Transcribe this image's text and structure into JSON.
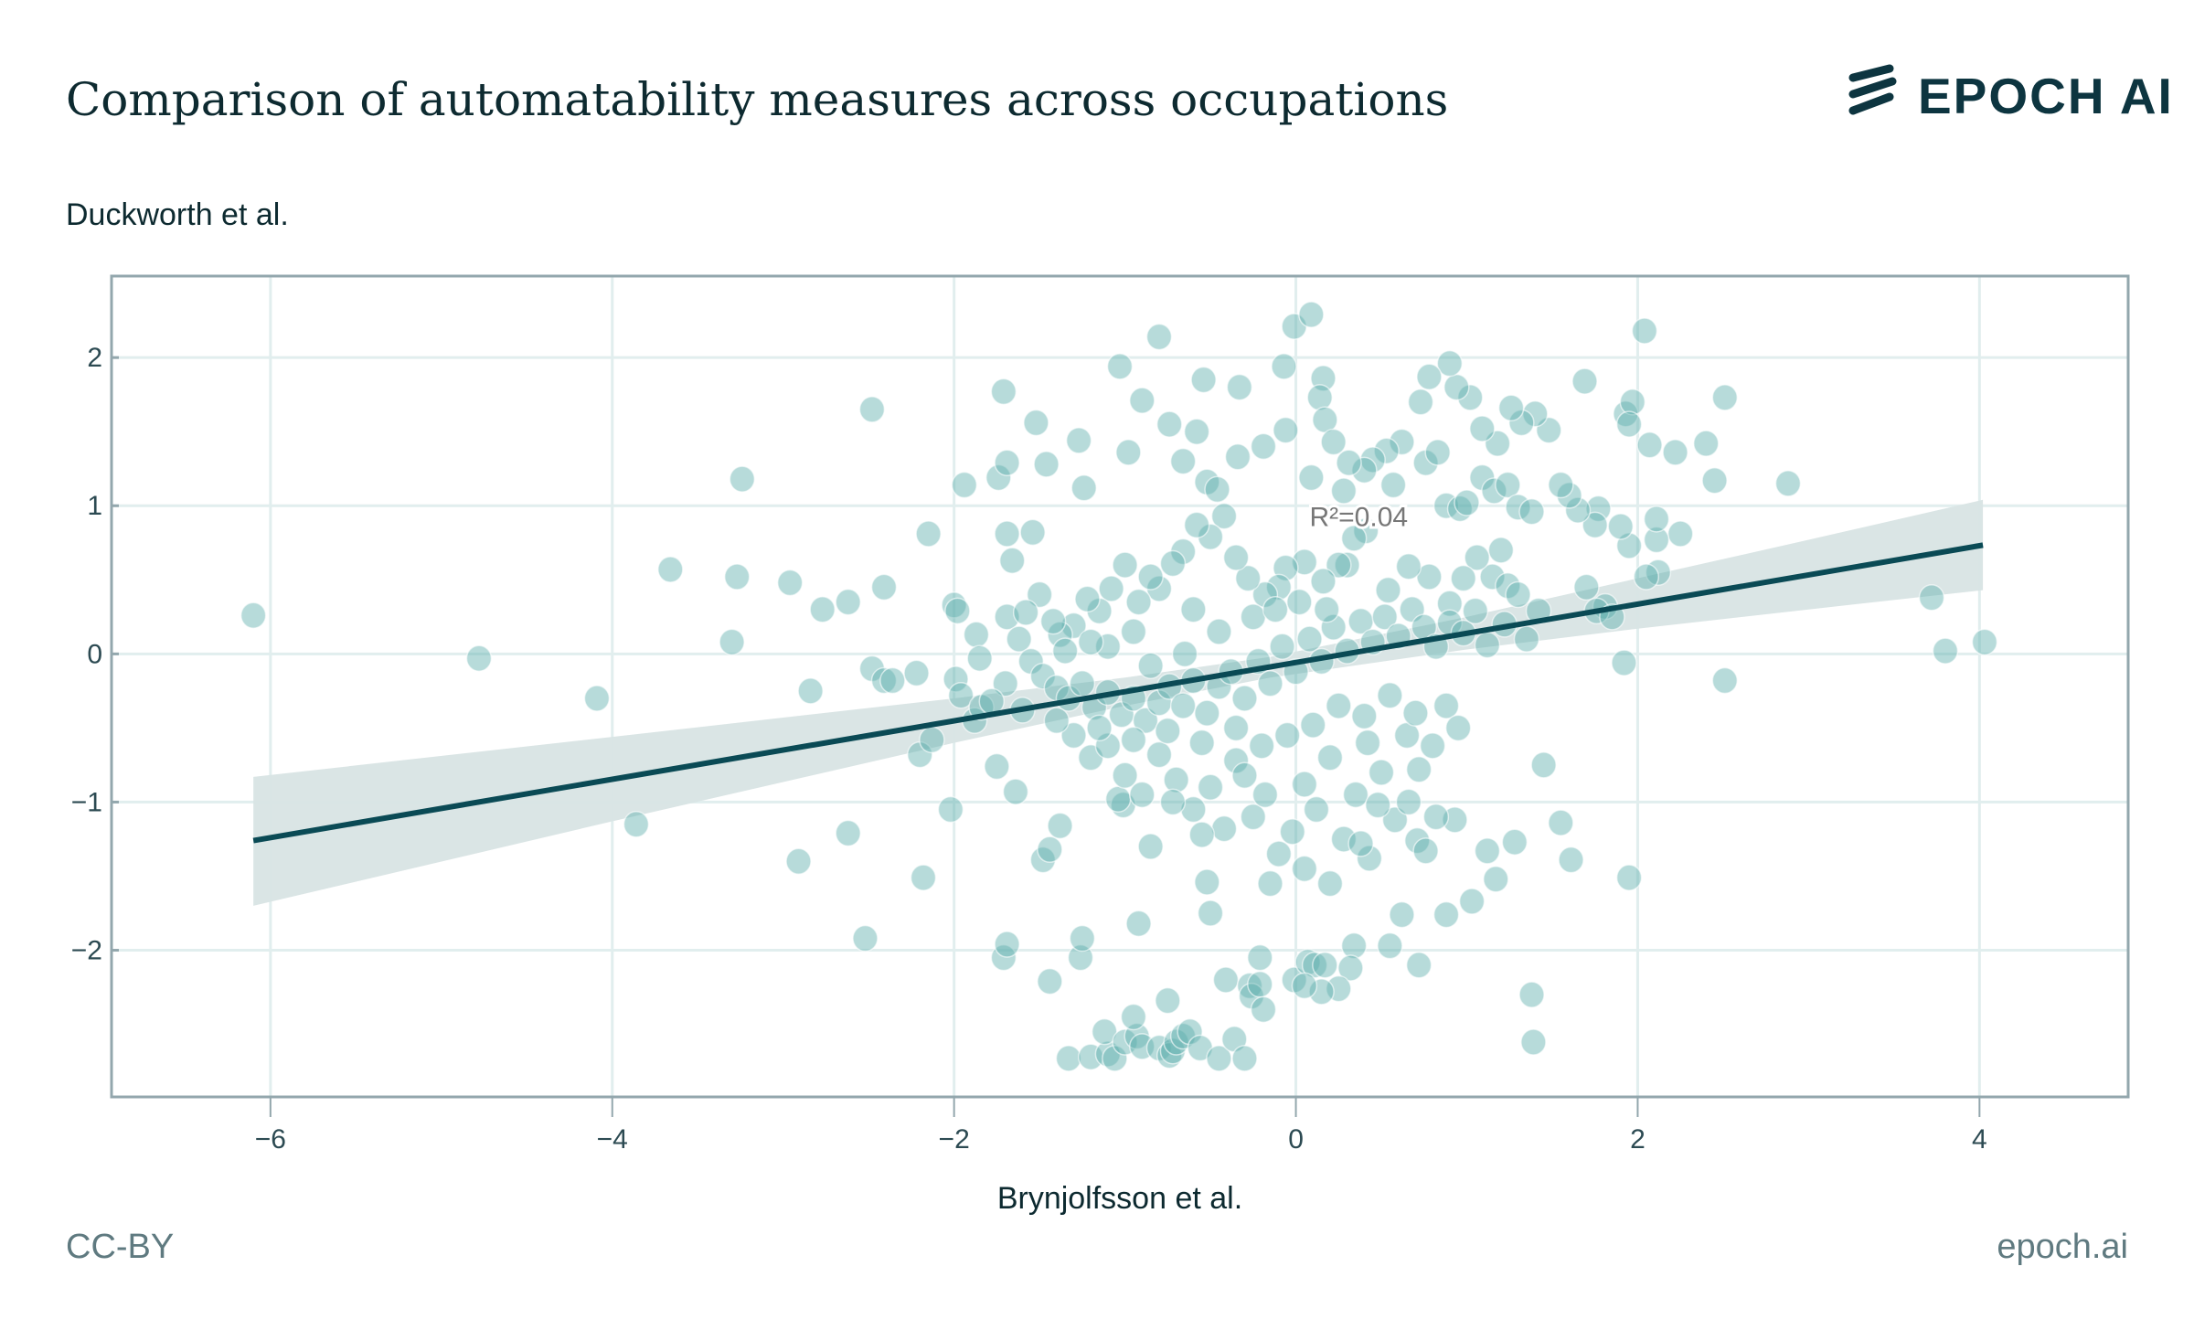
{
  "header": {
    "title": "Comparison of automatability measures across occupations",
    "logo_text": "EPOCH AI"
  },
  "footer": {
    "license": "CC-BY",
    "site": "epoch.ai"
  },
  "colors": {
    "point": "#5fb0ae",
    "line": "#0a4a55",
    "band": "#d8e4e4",
    "grid": "#e1eeee",
    "frame": "#93a7ad"
  },
  "chart_data": {
    "type": "scatter",
    "title": "Comparison of automatability measures across occupations",
    "xlabel": "Brynjolfsson et al.",
    "ylabel": "Duckworth et al.",
    "xlim": [
      -6.93,
      4.87
    ],
    "ylim": [
      -2.99,
      2.55
    ],
    "xticks": [
      -6,
      -4,
      -2,
      0,
      2,
      4
    ],
    "xtick_labels": [
      "−6",
      "−4",
      "−2",
      "0",
      "2",
      "4"
    ],
    "yticks": [
      -2,
      -1,
      0,
      1,
      2
    ],
    "ytick_labels": [
      "−2",
      "−1",
      "0",
      "1",
      "2"
    ],
    "grid": true,
    "annotation": {
      "text": "R²=0.04",
      "x": 0.08,
      "y": 0.93
    },
    "regression": {
      "slope": 0.197,
      "intercept": -0.058,
      "x_range": [
        -6.1,
        4.02
      ],
      "ci_band": [
        {
          "x": -6.1,
          "lo": -1.7,
          "hi": -0.83
        },
        {
          "x": -4,
          "lo": -1.13,
          "hi": -0.56
        },
        {
          "x": -2,
          "lo": -0.6,
          "hi": -0.3
        },
        {
          "x": -1,
          "lo": -0.35,
          "hi": -0.16
        },
        {
          "x": -0.15,
          "lo": -0.16,
          "hi": -0.02
        },
        {
          "x": 1,
          "lo": 0.03,
          "hi": 0.25
        },
        {
          "x": 2,
          "lo": 0.17,
          "hi": 0.51
        },
        {
          "x": 3,
          "lo": 0.3,
          "hi": 0.77
        },
        {
          "x": 4.02,
          "lo": 0.43,
          "hi": 1.04
        }
      ]
    },
    "points": [
      [
        -6.1,
        0.26
      ],
      [
        -4.78,
        -0.03
      ],
      [
        -4.09,
        -0.3
      ],
      [
        -3.86,
        -1.15
      ],
      [
        -3.66,
        0.57
      ],
      [
        -3.3,
        0.08
      ],
      [
        -3.27,
        0.52
      ],
      [
        -3.24,
        1.18
      ],
      [
        -2.96,
        0.48
      ],
      [
        -2.91,
        -1.4
      ],
      [
        -2.84,
        -0.25
      ],
      [
        -2.77,
        0.3
      ],
      [
        -2.62,
        -1.21
      ],
      [
        -2.62,
        0.35
      ],
      [
        -2.52,
        -1.92
      ],
      [
        -2.48,
        1.65
      ],
      [
        -2.48,
        -0.1
      ],
      [
        -2.41,
        -0.18
      ],
      [
        -2.36,
        -0.18
      ],
      [
        -2.41,
        0.45
      ],
      [
        -2.22,
        -0.13
      ],
      [
        -2.18,
        -1.51
      ],
      [
        -2.2,
        -0.68
      ],
      [
        -2.15,
        0.81
      ],
      [
        -2.13,
        -0.58
      ],
      [
        -2.02,
        -1.05
      ],
      [
        -2.0,
        0.33
      ],
      [
        -1.98,
        0.29
      ],
      [
        -1.99,
        -0.17
      ],
      [
        -1.96,
        -0.28
      ],
      [
        -1.94,
        1.14
      ],
      [
        -1.87,
        0.13
      ],
      [
        -1.85,
        -0.03
      ],
      [
        -1.88,
        -0.45
      ],
      [
        -1.84,
        -0.36
      ],
      [
        -1.75,
        -0.76
      ],
      [
        -1.74,
        1.19
      ],
      [
        -1.71,
        1.77
      ],
      [
        -1.69,
        0.25
      ],
      [
        -1.71,
        -2.05
      ],
      [
        -1.69,
        -1.96
      ],
      [
        -1.69,
        1.29
      ],
      [
        -1.69,
        0.81
      ],
      [
        -1.66,
        0.63
      ],
      [
        -1.64,
        -0.93
      ],
      [
        -1.52,
        1.56
      ],
      [
        -1.54,
        0.82
      ],
      [
        -1.48,
        -1.39
      ],
      [
        -1.44,
        -1.32
      ],
      [
        -1.44,
        -2.21
      ],
      [
        -1.46,
        1.28
      ],
      [
        -1.38,
        -1.16
      ],
      [
        -1.27,
        1.44
      ],
      [
        -1.26,
        -2.05
      ],
      [
        -1.25,
        -1.92
      ],
      [
        -1.24,
        1.12
      ],
      [
        -1.33,
        -2.73
      ],
      [
        -1.2,
        -2.72
      ],
      [
        -1.1,
        -2.7
      ],
      [
        -1.06,
        -2.73
      ],
      [
        -1.12,
        -2.55
      ],
      [
        -1.0,
        -2.62
      ],
      [
        -0.93,
        -2.58
      ],
      [
        -0.9,
        -2.65
      ],
      [
        -0.8,
        -2.66
      ],
      [
        -0.74,
        -2.71
      ],
      [
        -0.72,
        -2.68
      ],
      [
        -0.7,
        -2.62
      ],
      [
        -0.66,
        -2.58
      ],
      [
        -0.62,
        -2.55
      ],
      [
        -0.56,
        -2.66
      ],
      [
        -0.45,
        -2.73
      ],
      [
        -0.36,
        -2.6
      ],
      [
        -0.3,
        -2.73
      ],
      [
        -0.75,
        -2.34
      ],
      [
        -0.95,
        -2.45
      ],
      [
        -1.03,
        1.94
      ],
      [
        -1.01,
        -1.02
      ],
      [
        -1.04,
        -0.98
      ],
      [
        -0.98,
        1.36
      ],
      [
        -0.92,
        -1.82
      ],
      [
        -0.9,
        1.71
      ],
      [
        -0.8,
        2.14
      ],
      [
        -0.74,
        1.55
      ],
      [
        -0.66,
        1.3
      ],
      [
        -0.58,
        1.5
      ],
      [
        -0.54,
        1.85
      ],
      [
        -0.5,
        -1.75
      ],
      [
        -0.52,
        -1.54
      ],
      [
        -0.52,
        1.16
      ],
      [
        -0.46,
        1.11
      ],
      [
        -0.41,
        -2.2
      ],
      [
        -0.34,
        1.33
      ],
      [
        -0.33,
        1.8
      ],
      [
        -0.27,
        -2.24
      ],
      [
        -0.26,
        -2.31
      ],
      [
        -0.21,
        -2.05
      ],
      [
        -0.21,
        -2.23
      ],
      [
        -0.19,
        -2.4
      ],
      [
        -0.19,
        1.4
      ],
      [
        -0.07,
        1.94
      ],
      [
        -0.01,
        2.21
      ],
      [
        0.09,
        2.29
      ],
      [
        -0.06,
        1.51
      ],
      [
        0.09,
        1.19
      ],
      [
        0.16,
        1.86
      ],
      [
        0.14,
        1.73
      ],
      [
        0.17,
        1.58
      ],
      [
        -0.01,
        -2.2
      ],
      [
        0.07,
        -2.08
      ],
      [
        0.11,
        -2.1
      ],
      [
        0.17,
        -2.1
      ],
      [
        0.34,
        -1.97
      ],
      [
        0.32,
        -2.12
      ],
      [
        0.25,
        -2.26
      ],
      [
        0.15,
        -2.28
      ],
      [
        0.05,
        -2.24
      ],
      [
        0.43,
        -1.38
      ],
      [
        0.55,
        -1.97
      ],
      [
        0.62,
        -1.76
      ],
      [
        0.72,
        -2.1
      ],
      [
        0.88,
        -1.76
      ],
      [
        0.71,
        -1.26
      ],
      [
        0.76,
        -1.33
      ],
      [
        0.93,
        -1.12
      ],
      [
        0.82,
        -1.1
      ],
      [
        1.03,
        -1.67
      ],
      [
        1.12,
        -1.33
      ],
      [
        1.17,
        -1.52
      ],
      [
        1.28,
        -1.27
      ],
      [
        1.38,
        -2.3
      ],
      [
        1.39,
        -2.62
      ],
      [
        1.45,
        -0.75
      ],
      [
        1.55,
        -1.14
      ],
      [
        1.61,
        -1.39
      ],
      [
        1.92,
        -0.06
      ],
      [
        1.95,
        -1.51
      ],
      [
        2.04,
        2.18
      ],
      [
        2.51,
        1.73
      ],
      [
        2.88,
        1.15
      ],
      [
        3.72,
        0.38
      ],
      [
        3.8,
        0.02
      ],
      [
        4.03,
        0.08
      ],
      [
        2.51,
        -0.18
      ],
      [
        1.69,
        1.84
      ],
      [
        1.93,
        1.62
      ],
      [
        1.97,
        1.7
      ],
      [
        1.95,
        1.55
      ],
      [
        2.07,
        1.41
      ],
      [
        2.22,
        1.36
      ],
      [
        2.4,
        1.42
      ],
      [
        2.45,
        1.17
      ],
      [
        2.25,
        0.81
      ],
      [
        2.11,
        0.77
      ],
      [
        2.11,
        0.91
      ],
      [
        2.12,
        0.55
      ],
      [
        2.05,
        0.52
      ],
      [
        1.95,
        0.73
      ],
      [
        1.9,
        0.86
      ],
      [
        1.77,
        0.98
      ],
      [
        1.75,
        0.87
      ],
      [
        1.7,
        0.45
      ],
      [
        1.81,
        0.32
      ],
      [
        1.76,
        0.29
      ],
      [
        1.85,
        0.25
      ],
      [
        1.65,
        0.97
      ],
      [
        1.6,
        1.07
      ],
      [
        1.55,
        1.14
      ],
      [
        1.48,
        1.51
      ],
      [
        1.4,
        1.62
      ],
      [
        1.32,
        1.56
      ],
      [
        1.26,
        1.66
      ],
      [
        1.18,
        1.42
      ],
      [
        1.09,
        1.52
      ],
      [
        1.02,
        1.73
      ],
      [
        0.94,
        1.8
      ],
      [
        0.9,
        1.96
      ],
      [
        0.78,
        1.87
      ],
      [
        0.73,
        1.7
      ],
      [
        0.62,
        1.43
      ],
      [
        0.53,
        1.37
      ],
      [
        0.45,
        1.31
      ],
      [
        0.4,
        1.24
      ],
      [
        0.31,
        1.29
      ],
      [
        0.22,
        1.43
      ],
      [
        0.28,
        1.1
      ],
      [
        0.57,
        1.14
      ],
      [
        0.76,
        1.29
      ],
      [
        0.83,
        1.36
      ],
      [
        0.88,
        1.0
      ],
      [
        0.96,
        0.98
      ],
      [
        1.0,
        1.02
      ],
      [
        1.09,
        1.19
      ],
      [
        1.16,
        1.1
      ],
      [
        1.24,
        1.14
      ],
      [
        1.3,
        0.99
      ],
      [
        1.38,
        0.96
      ],
      [
        1.2,
        0.7
      ],
      [
        1.15,
        0.52
      ],
      [
        1.24,
        0.46
      ],
      [
        1.3,
        0.4
      ],
      [
        1.06,
        0.65
      ],
      [
        0.98,
        0.51
      ],
      [
        0.9,
        0.34
      ],
      [
        0.78,
        0.52
      ],
      [
        0.66,
        0.59
      ],
      [
        0.54,
        0.43
      ],
      [
        0.41,
        0.83
      ],
      [
        0.34,
        0.78
      ],
      [
        0.3,
        0.6
      ],
      [
        0.25,
        0.6
      ],
      [
        0.16,
        0.49
      ],
      [
        0.05,
        0.62
      ],
      [
        -0.06,
        0.58
      ],
      [
        -0.1,
        0.45
      ],
      [
        -0.18,
        0.4
      ],
      [
        -0.28,
        0.51
      ],
      [
        -0.35,
        0.65
      ],
      [
        -0.42,
        0.93
      ],
      [
        -0.5,
        0.79
      ],
      [
        -0.58,
        0.87
      ],
      [
        -0.66,
        0.69
      ],
      [
        -0.72,
        0.61
      ],
      [
        -0.8,
        0.44
      ],
      [
        -0.85,
        0.52
      ],
      [
        -0.92,
        0.35
      ],
      [
        -1.0,
        0.6
      ],
      [
        -1.08,
        0.44
      ],
      [
        -1.15,
        0.29
      ],
      [
        -1.22,
        0.37
      ],
      [
        -1.3,
        0.19
      ],
      [
        -1.38,
        0.13
      ],
      [
        -1.42,
        0.22
      ],
      [
        -1.5,
        0.4
      ],
      [
        -1.58,
        0.28
      ],
      [
        -1.62,
        0.1
      ],
      [
        -1.55,
        -0.05
      ],
      [
        -1.48,
        -0.15
      ],
      [
        -1.4,
        -0.23
      ],
      [
        -1.33,
        -0.3
      ],
      [
        -1.25,
        -0.2
      ],
      [
        -1.18,
        -0.36
      ],
      [
        -1.1,
        -0.26
      ],
      [
        -1.02,
        -0.41
      ],
      [
        -0.95,
        -0.3
      ],
      [
        -0.88,
        -0.45
      ],
      [
        -0.8,
        -0.33
      ],
      [
        -0.74,
        -0.22
      ],
      [
        -0.66,
        -0.35
      ],
      [
        -0.6,
        -0.18
      ],
      [
        -0.52,
        -0.4
      ],
      [
        -0.45,
        -0.22
      ],
      [
        -0.38,
        -0.12
      ],
      [
        -0.3,
        -0.3
      ],
      [
        -0.22,
        -0.05
      ],
      [
        -0.15,
        -0.2
      ],
      [
        -0.08,
        0.05
      ],
      [
        0.0,
        -0.12
      ],
      [
        0.08,
        0.1
      ],
      [
        0.15,
        -0.05
      ],
      [
        0.22,
        0.18
      ],
      [
        0.3,
        0.02
      ],
      [
        0.38,
        0.22
      ],
      [
        0.45,
        0.08
      ],
      [
        0.52,
        0.25
      ],
      [
        0.6,
        0.12
      ],
      [
        0.68,
        0.3
      ],
      [
        0.75,
        0.18
      ],
      [
        0.82,
        0.05
      ],
      [
        0.9,
        0.21
      ],
      [
        0.98,
        0.14
      ],
      [
        1.05,
        0.29
      ],
      [
        1.12,
        0.06
      ],
      [
        1.22,
        0.2
      ],
      [
        1.35,
        0.1
      ],
      [
        1.42,
        0.29
      ],
      [
        -1.3,
        -0.55
      ],
      [
        -1.2,
        -0.7
      ],
      [
        -1.1,
        -0.62
      ],
      [
        -1.0,
        -0.82
      ],
      [
        -0.9,
        -0.95
      ],
      [
        -0.8,
        -0.68
      ],
      [
        -0.7,
        -0.85
      ],
      [
        -0.6,
        -1.05
      ],
      [
        -0.5,
        -0.9
      ],
      [
        -0.42,
        -1.18
      ],
      [
        -0.35,
        -0.72
      ],
      [
        -0.25,
        -1.1
      ],
      [
        -0.18,
        -0.95
      ],
      [
        -0.1,
        -1.35
      ],
      [
        -0.02,
        -1.2
      ],
      [
        0.05,
        -0.88
      ],
      [
        0.12,
        -1.05
      ],
      [
        0.2,
        -0.7
      ],
      [
        0.28,
        -1.25
      ],
      [
        0.35,
        -0.95
      ],
      [
        0.42,
        -0.6
      ],
      [
        0.5,
        -0.8
      ],
      [
        0.58,
        -1.12
      ],
      [
        0.65,
        -0.55
      ],
      [
        0.72,
        -0.78
      ],
      [
        0.8,
        -0.62
      ],
      [
        0.88,
        -0.35
      ],
      [
        0.95,
        -0.5
      ],
      [
        0.7,
        -0.4
      ],
      [
        0.55,
        -0.28
      ],
      [
        0.4,
        -0.42
      ],
      [
        0.25,
        -0.35
      ],
      [
        0.1,
        -0.48
      ],
      [
        -0.05,
        -0.55
      ],
      [
        -0.2,
        -0.62
      ],
      [
        -0.35,
        -0.5
      ],
      [
        -0.55,
        -0.6
      ],
      [
        -0.75,
        -0.52
      ],
      [
        -0.95,
        -0.58
      ],
      [
        -1.15,
        -0.5
      ],
      [
        -1.4,
        -0.45
      ],
      [
        -1.6,
        -0.38
      ],
      [
        -1.7,
        -0.2
      ],
      [
        -1.78,
        -0.32
      ],
      [
        -1.35,
        0.02
      ],
      [
        -1.1,
        0.05
      ],
      [
        -0.85,
        -0.08
      ],
      [
        -0.65,
        0.0
      ],
      [
        -0.45,
        0.15
      ],
      [
        -0.25,
        0.25
      ],
      [
        -0.12,
        0.3
      ],
      [
        0.02,
        0.35
      ],
      [
        0.18,
        0.3
      ],
      [
        -0.6,
        0.3
      ],
      [
        -0.95,
        0.15
      ],
      [
        -1.2,
        0.08
      ],
      [
        -0.3,
        -0.82
      ],
      [
        -0.55,
        -1.22
      ],
      [
        -0.72,
        -1.0
      ],
      [
        -0.85,
        -1.3
      ],
      [
        -0.15,
        -1.55
      ],
      [
        0.05,
        -1.45
      ],
      [
        0.2,
        -1.55
      ],
      [
        0.38,
        -1.28
      ],
      [
        0.48,
        -1.02
      ],
      [
        0.66,
        -1.0
      ]
    ]
  }
}
